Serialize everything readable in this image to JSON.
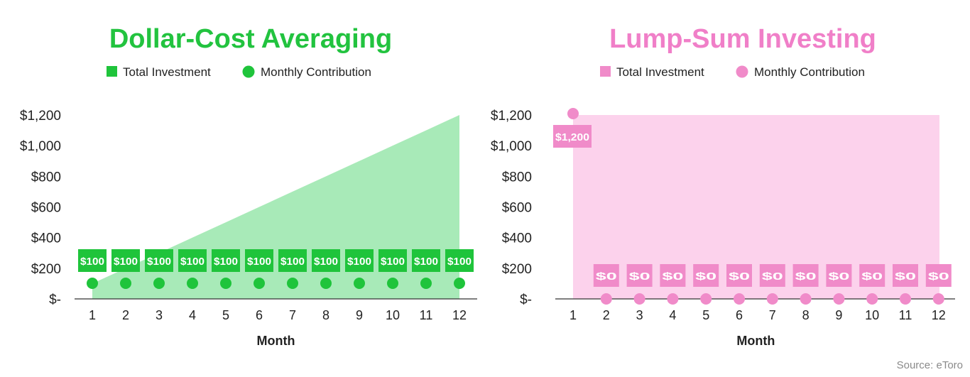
{
  "chart_data": [
    {
      "type": "area",
      "title": "Dollar-Cost Averaging",
      "legend": [
        {
          "name": "Total Investment",
          "marker": "square"
        },
        {
          "name": "Monthly Contribution",
          "marker": "circle"
        }
      ],
      "legend_position": "top",
      "xlabel": "Month",
      "x": [
        1,
        2,
        3,
        4,
        5,
        6,
        7,
        8,
        9,
        10,
        11,
        12
      ],
      "x_tick_labels": [
        "1",
        "2",
        "3",
        "4",
        "5",
        "6",
        "7",
        "8",
        "9",
        "10",
        "11",
        "12"
      ],
      "series": [
        {
          "name": "Total Investment",
          "type": "area",
          "values": [
            100,
            200,
            300,
            400,
            500,
            600,
            700,
            800,
            900,
            1000,
            1100,
            1200
          ]
        },
        {
          "name": "Monthly Contribution",
          "type": "scatter",
          "values": [
            100,
            100,
            100,
            100,
            100,
            100,
            100,
            100,
            100,
            100,
            100,
            100
          ],
          "data_labels": [
            "$100",
            "$100",
            "$100",
            "$100",
            "$100",
            "$100",
            "$100",
            "$100",
            "$100",
            "$100",
            "$100",
            "$100"
          ]
        }
      ],
      "ylim": [
        0,
        1200
      ],
      "y_ticks": [
        0,
        200,
        400,
        600,
        800,
        1000,
        1200
      ],
      "y_tick_labels": [
        "$-",
        "$200",
        "$400",
        "$600",
        "$800",
        "$1,000",
        "$1,200"
      ],
      "grid": false,
      "colors": {
        "title": "#22c33f",
        "area": "#a8eab8",
        "marker": "#1fc43b",
        "label_bg": "#1fc43b",
        "label_text": "#ffffff"
      }
    },
    {
      "type": "area",
      "title": "Lump-Sum Investing",
      "legend": [
        {
          "name": "Total Investment",
          "marker": "square"
        },
        {
          "name": "Monthly Contribution",
          "marker": "circle"
        }
      ],
      "legend_position": "top",
      "xlabel": "Month",
      "x": [
        1,
        2,
        3,
        4,
        5,
        6,
        7,
        8,
        9,
        10,
        11,
        12
      ],
      "x_tick_labels": [
        "1",
        "2",
        "3",
        "4",
        "5",
        "6",
        "7",
        "8",
        "9",
        "10",
        "11",
        "12"
      ],
      "series": [
        {
          "name": "Total Investment",
          "type": "area",
          "values": [
            1200,
            1200,
            1200,
            1200,
            1200,
            1200,
            1200,
            1200,
            1200,
            1200,
            1200,
            1200
          ]
        },
        {
          "name": "Monthly Contribution",
          "type": "scatter",
          "values": [
            1200,
            0,
            0,
            0,
            0,
            0,
            0,
            0,
            0,
            0,
            0,
            0
          ],
          "data_labels": [
            "$1,200",
            "$0",
            "$0",
            "$0",
            "$0",
            "$0",
            "$0",
            "$0",
            "$0",
            "$0",
            "$0",
            "$0"
          ]
        }
      ],
      "ylim": [
        0,
        1200
      ],
      "y_ticks": [
        0,
        200,
        400,
        600,
        800,
        1000,
        1200
      ],
      "y_tick_labels": [
        "$-",
        "$200",
        "$400",
        "$600",
        "$800",
        "$1,000",
        "$1,200"
      ],
      "grid": false,
      "colors": {
        "title": "#f07fc8",
        "area": "#fcd2ec",
        "marker": "#f08bc9",
        "label_bg": "#f08bc9",
        "label_text": "#ffffff"
      }
    }
  ],
  "source": "Source: eToro"
}
